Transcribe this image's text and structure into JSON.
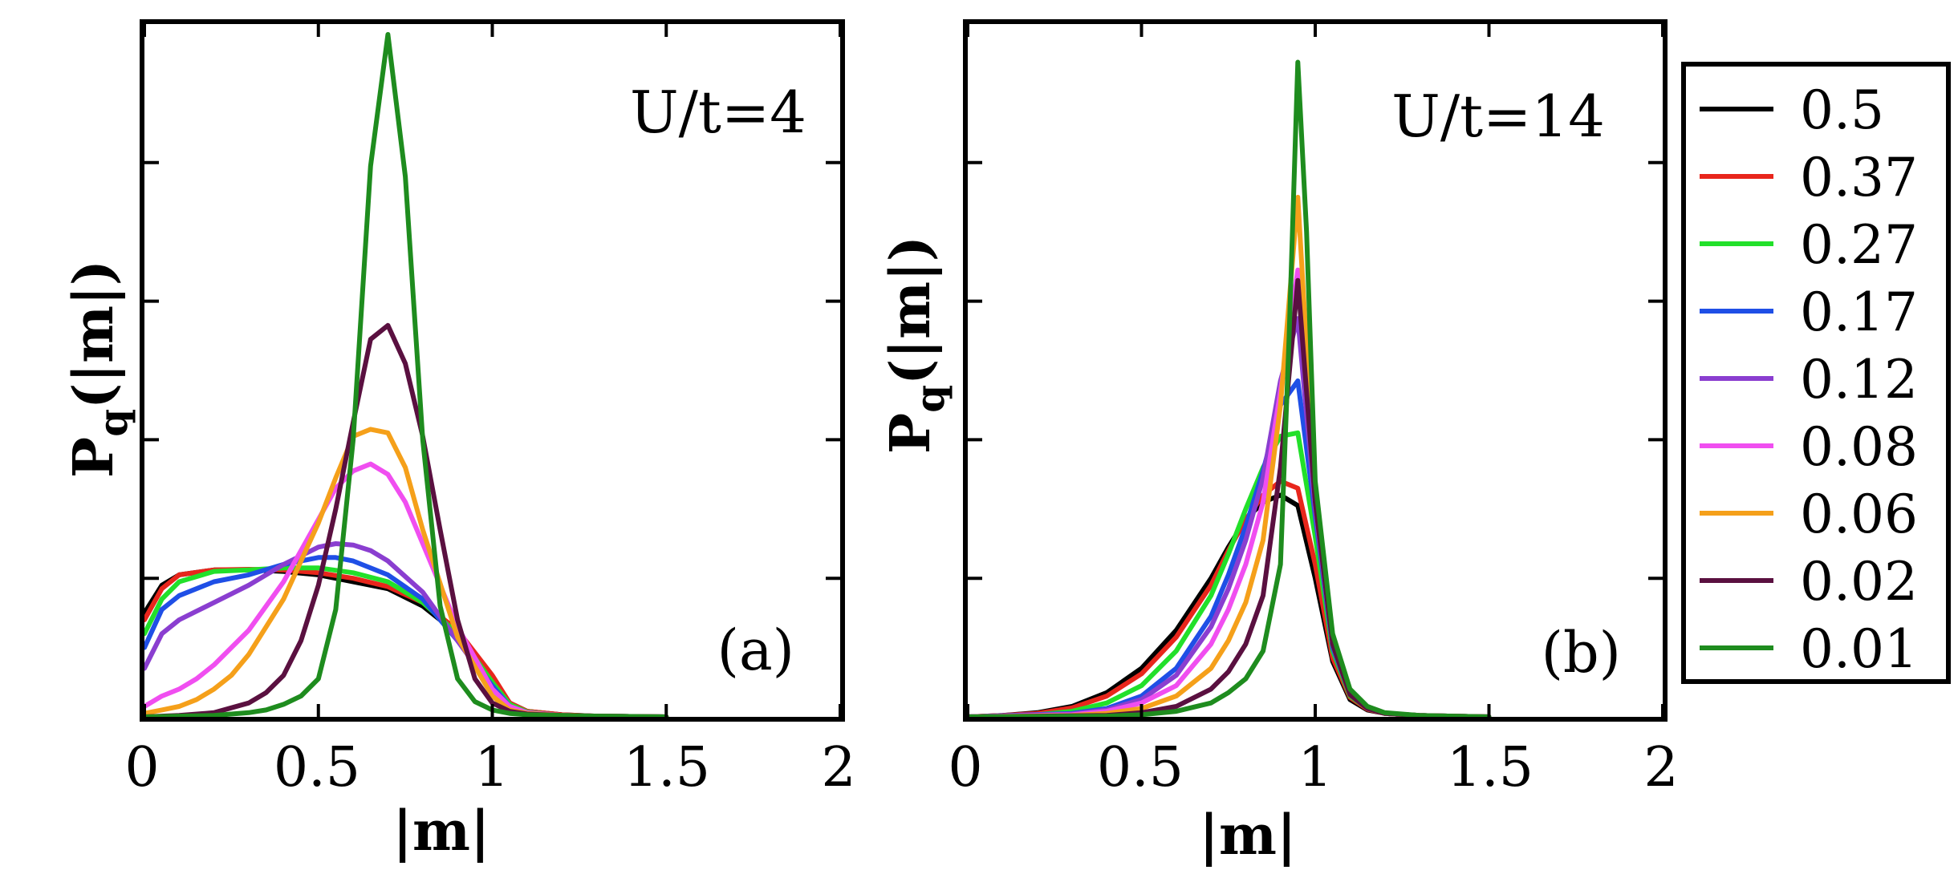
{
  "figure": {
    "legend": {
      "entries": [
        {
          "label": "0.5",
          "color": "#000000"
        },
        {
          "label": "0.37",
          "color": "#e8261c"
        },
        {
          "label": "0.27",
          "color": "#22e02a"
        },
        {
          "label": "0.17",
          "color": "#1f4fe6"
        },
        {
          "label": "0.12",
          "color": "#8a3ed0"
        },
        {
          "label": "0.08",
          "color": "#f04ef0"
        },
        {
          "label": "0.06",
          "color": "#f5a01a"
        },
        {
          "label": "0.02",
          "color": "#5a1040"
        },
        {
          "label": "0.01",
          "color": "#1e8c1e"
        }
      ]
    }
  },
  "chart_data": [
    {
      "type": "line",
      "title": "U/t=4",
      "panel_label": "(a)",
      "xlabel": "|m|",
      "ylabel_main": "P",
      "ylabel_sub": "q",
      "ylabel_tail": "(|m|)",
      "xlim": [
        0,
        2
      ],
      "ylim": [
        0,
        10
      ],
      "xticks": [
        0,
        0.5,
        1,
        1.5,
        2
      ],
      "xtick_labels": [
        "0",
        "0.5",
        "1",
        "1.5",
        "2"
      ],
      "yticks": [
        2,
        4,
        6,
        8
      ],
      "series": [
        {
          "name": "0.5",
          "color": "#000000",
          "x": [
            0,
            0.05,
            0.1,
            0.2,
            0.3,
            0.4,
            0.5,
            0.6,
            0.7,
            0.8,
            0.9,
            1.0,
            1.05,
            1.1,
            1.2,
            1.3,
            1.5
          ],
          "y": [
            1.5,
            1.9,
            2.05,
            2.12,
            2.12,
            2.1,
            2.05,
            1.95,
            1.85,
            1.6,
            1.2,
            0.55,
            0.2,
            0.08,
            0.03,
            0.01,
            0
          ]
        },
        {
          "name": "0.37",
          "color": "#e8261c",
          "x": [
            0,
            0.05,
            0.1,
            0.2,
            0.3,
            0.4,
            0.5,
            0.6,
            0.7,
            0.8,
            0.9,
            1.0,
            1.05,
            1.1,
            1.2,
            1.3,
            1.5
          ],
          "y": [
            1.4,
            1.85,
            2.05,
            2.12,
            2.13,
            2.12,
            2.08,
            2.0,
            1.88,
            1.65,
            1.25,
            0.6,
            0.2,
            0.08,
            0.03,
            0.01,
            0
          ]
        },
        {
          "name": "0.27",
          "color": "#22e02a",
          "x": [
            0,
            0.05,
            0.1,
            0.2,
            0.3,
            0.4,
            0.5,
            0.6,
            0.7,
            0.8,
            0.9,
            1.0,
            1.05,
            1.1,
            1.2,
            1.3,
            1.5
          ],
          "y": [
            1.2,
            1.7,
            1.95,
            2.1,
            2.12,
            2.15,
            2.15,
            2.08,
            1.95,
            1.65,
            1.2,
            0.5,
            0.18,
            0.07,
            0.02,
            0.01,
            0
          ]
        },
        {
          "name": "0.17",
          "color": "#1f4fe6",
          "x": [
            0,
            0.05,
            0.1,
            0.2,
            0.3,
            0.4,
            0.5,
            0.55,
            0.6,
            0.7,
            0.8,
            0.9,
            1.0,
            1.05,
            1.1,
            1.2,
            1.3,
            1.5
          ],
          "y": [
            1.0,
            1.55,
            1.75,
            1.95,
            2.05,
            2.2,
            2.3,
            2.3,
            2.25,
            2.05,
            1.7,
            1.1,
            0.45,
            0.15,
            0.06,
            0.02,
            0.01,
            0
          ]
        },
        {
          "name": "0.12",
          "color": "#8a3ed0",
          "x": [
            0,
            0.05,
            0.1,
            0.2,
            0.3,
            0.4,
            0.5,
            0.55,
            0.6,
            0.65,
            0.7,
            0.8,
            0.9,
            1.0,
            1.05,
            1.1,
            1.2,
            1.3,
            1.5
          ],
          "y": [
            0.7,
            1.2,
            1.4,
            1.65,
            1.9,
            2.2,
            2.45,
            2.5,
            2.48,
            2.4,
            2.25,
            1.8,
            1.1,
            0.4,
            0.15,
            0.06,
            0.02,
            0.01,
            0
          ]
        },
        {
          "name": "0.08",
          "color": "#f04ef0",
          "x": [
            0,
            0.05,
            0.1,
            0.15,
            0.2,
            0.3,
            0.4,
            0.5,
            0.55,
            0.6,
            0.65,
            0.7,
            0.75,
            0.8,
            0.9,
            1.0,
            1.05,
            1.1,
            1.2,
            1.3,
            1.5
          ],
          "y": [
            0.15,
            0.3,
            0.4,
            0.55,
            0.75,
            1.25,
            1.95,
            2.85,
            3.3,
            3.55,
            3.65,
            3.5,
            3.1,
            2.5,
            1.3,
            0.4,
            0.15,
            0.06,
            0.02,
            0.01,
            0
          ]
        },
        {
          "name": "0.06",
          "color": "#f5a01a",
          "x": [
            0,
            0.05,
            0.1,
            0.15,
            0.2,
            0.25,
            0.3,
            0.4,
            0.5,
            0.55,
            0.6,
            0.65,
            0.7,
            0.75,
            0.8,
            0.9,
            1.0,
            1.05,
            1.1,
            1.2,
            1.3,
            1.5
          ],
          "y": [
            0.05,
            0.1,
            0.15,
            0.25,
            0.4,
            0.6,
            0.9,
            1.7,
            2.8,
            3.45,
            4.05,
            4.15,
            4.1,
            3.6,
            2.7,
            1.15,
            0.3,
            0.1,
            0.05,
            0.02,
            0.01,
            0
          ]
        },
        {
          "name": "0.02",
          "color": "#5a1040",
          "x": [
            0,
            0.1,
            0.2,
            0.3,
            0.35,
            0.4,
            0.45,
            0.5,
            0.55,
            0.6,
            0.65,
            0.7,
            0.75,
            0.8,
            0.85,
            0.9,
            0.95,
            1.0,
            1.05,
            1.1,
            1.2,
            1.3,
            1.5
          ],
          "y": [
            0,
            0.02,
            0.06,
            0.2,
            0.35,
            0.6,
            1.1,
            1.9,
            3.0,
            4.25,
            5.45,
            5.65,
            5.1,
            4.05,
            2.7,
            1.4,
            0.55,
            0.2,
            0.08,
            0.04,
            0.02,
            0.01,
            0
          ]
        },
        {
          "name": "0.01",
          "color": "#1e8c1e",
          "x": [
            0,
            0.1,
            0.2,
            0.3,
            0.35,
            0.4,
            0.45,
            0.5,
            0.55,
            0.6,
            0.65,
            0.7,
            0.75,
            0.8,
            0.85,
            0.9,
            0.95,
            1.0,
            1.05,
            1.1,
            1.2,
            1.3,
            1.5
          ],
          "y": [
            0,
            0.01,
            0.02,
            0.06,
            0.1,
            0.18,
            0.3,
            0.55,
            1.55,
            4.0,
            7.95,
            9.85,
            7.8,
            4.0,
            1.6,
            0.55,
            0.22,
            0.1,
            0.05,
            0.03,
            0.02,
            0.01,
            0
          ]
        }
      ]
    },
    {
      "type": "line",
      "title": "U/t=14",
      "panel_label": "(b)",
      "xlabel": "|m|",
      "ylabel_main": "P",
      "ylabel_sub": "q",
      "ylabel_tail": "(|m|)",
      "xlim": [
        0,
        2
      ],
      "ylim": [
        0,
        10
      ],
      "xticks": [
        0,
        0.5,
        1,
        1.5,
        2
      ],
      "xtick_labels": [
        "0",
        "0.5",
        "1",
        "1.5",
        "2"
      ],
      "yticks": [
        2,
        4,
        6,
        8
      ],
      "series": [
        {
          "name": "0.5",
          "color": "#000000",
          "x": [
            0,
            0.1,
            0.2,
            0.3,
            0.4,
            0.5,
            0.6,
            0.7,
            0.75,
            0.8,
            0.85,
            0.9,
            0.95,
            1.0,
            1.05,
            1.1,
            1.15,
            1.2,
            1.3,
            1.5
          ],
          "y": [
            0,
            0.02,
            0.06,
            0.15,
            0.35,
            0.7,
            1.25,
            2.0,
            2.45,
            2.85,
            3.1,
            3.2,
            3.05,
            2.0,
            0.8,
            0.25,
            0.1,
            0.05,
            0.02,
            0
          ]
        },
        {
          "name": "0.37",
          "color": "#e8261c",
          "x": [
            0,
            0.1,
            0.2,
            0.3,
            0.4,
            0.5,
            0.6,
            0.7,
            0.75,
            0.8,
            0.85,
            0.9,
            0.95,
            1.0,
            1.05,
            1.1,
            1.15,
            1.2,
            1.3,
            1.5
          ],
          "y": [
            0,
            0.02,
            0.05,
            0.13,
            0.3,
            0.62,
            1.15,
            1.9,
            2.4,
            2.85,
            3.2,
            3.4,
            3.3,
            2.2,
            0.85,
            0.28,
            0.11,
            0.05,
            0.02,
            0
          ]
        },
        {
          "name": "0.27",
          "color": "#22e02a",
          "x": [
            0,
            0.2,
            0.3,
            0.4,
            0.5,
            0.6,
            0.7,
            0.75,
            0.8,
            0.85,
            0.9,
            0.95,
            1.0,
            1.05,
            1.1,
            1.15,
            1.2,
            1.3,
            1.5
          ],
          "y": [
            0,
            0.03,
            0.08,
            0.2,
            0.45,
            0.95,
            1.75,
            2.35,
            3.0,
            3.6,
            4.05,
            4.1,
            2.6,
            0.95,
            0.3,
            0.12,
            0.05,
            0.02,
            0
          ]
        },
        {
          "name": "0.17",
          "color": "#1f4fe6",
          "x": [
            0,
            0.3,
            0.4,
            0.5,
            0.6,
            0.7,
            0.75,
            0.8,
            0.85,
            0.9,
            0.95,
            1.0,
            1.05,
            1.1,
            1.15,
            1.2,
            1.3,
            1.5
          ],
          "y": [
            0,
            0.05,
            0.12,
            0.3,
            0.7,
            1.45,
            2.05,
            2.75,
            3.55,
            4.5,
            4.85,
            2.9,
            1.0,
            0.32,
            0.12,
            0.05,
            0.02,
            0
          ]
        },
        {
          "name": "0.12",
          "color": "#8a3ed0",
          "x": [
            0,
            0.3,
            0.4,
            0.5,
            0.6,
            0.7,
            0.75,
            0.8,
            0.85,
            0.9,
            0.95,
            1.0,
            1.05,
            1.1,
            1.15,
            1.2,
            1.3,
            1.5
          ],
          "y": [
            0,
            0.04,
            0.1,
            0.25,
            0.6,
            1.3,
            1.85,
            2.55,
            3.45,
            4.85,
            5.75,
            3.0,
            1.05,
            0.32,
            0.12,
            0.05,
            0.02,
            0
          ]
        },
        {
          "name": "0.08",
          "color": "#f04ef0",
          "x": [
            0,
            0.3,
            0.4,
            0.5,
            0.6,
            0.7,
            0.75,
            0.8,
            0.85,
            0.9,
            0.95,
            1.0,
            1.05,
            1.1,
            1.15,
            1.2,
            1.3,
            1.5
          ],
          "y": [
            0,
            0.03,
            0.08,
            0.2,
            0.45,
            1.05,
            1.55,
            2.2,
            3.1,
            4.7,
            6.45,
            3.1,
            1.05,
            0.32,
            0.12,
            0.05,
            0.02,
            0
          ]
        },
        {
          "name": "0.06",
          "color": "#f5a01a",
          "x": [
            0,
            0.3,
            0.4,
            0.5,
            0.6,
            0.7,
            0.75,
            0.8,
            0.85,
            0.9,
            0.95,
            1.0,
            1.05,
            1.1,
            1.15,
            1.2,
            1.3,
            1.5
          ],
          "y": [
            0,
            0.02,
            0.05,
            0.12,
            0.3,
            0.7,
            1.1,
            1.65,
            2.55,
            4.5,
            7.5,
            3.2,
            1.05,
            0.32,
            0.12,
            0.05,
            0.02,
            0
          ]
        },
        {
          "name": "0.02",
          "color": "#5a1040",
          "x": [
            0,
            0.4,
            0.5,
            0.6,
            0.7,
            0.75,
            0.8,
            0.85,
            0.9,
            0.95,
            1.0,
            1.05,
            1.1,
            1.15,
            1.2,
            1.3,
            1.5
          ],
          "y": [
            0,
            0.02,
            0.06,
            0.15,
            0.4,
            0.65,
            1.05,
            1.75,
            3.6,
            6.3,
            3.1,
            1.05,
            0.32,
            0.12,
            0.05,
            0.02,
            0
          ]
        },
        {
          "name": "0.01",
          "color": "#1e8c1e",
          "x": [
            0,
            0.4,
            0.5,
            0.6,
            0.7,
            0.75,
            0.8,
            0.85,
            0.9,
            0.925,
            0.95,
            0.975,
            1.0,
            1.05,
            1.1,
            1.15,
            1.2,
            1.3,
            1.5
          ],
          "y": [
            0,
            0.01,
            0.03,
            0.08,
            0.2,
            0.35,
            0.55,
            0.95,
            2.2,
            5.5,
            9.45,
            7.0,
            3.4,
            1.2,
            0.4,
            0.15,
            0.06,
            0.02,
            0
          ]
        }
      ]
    }
  ]
}
